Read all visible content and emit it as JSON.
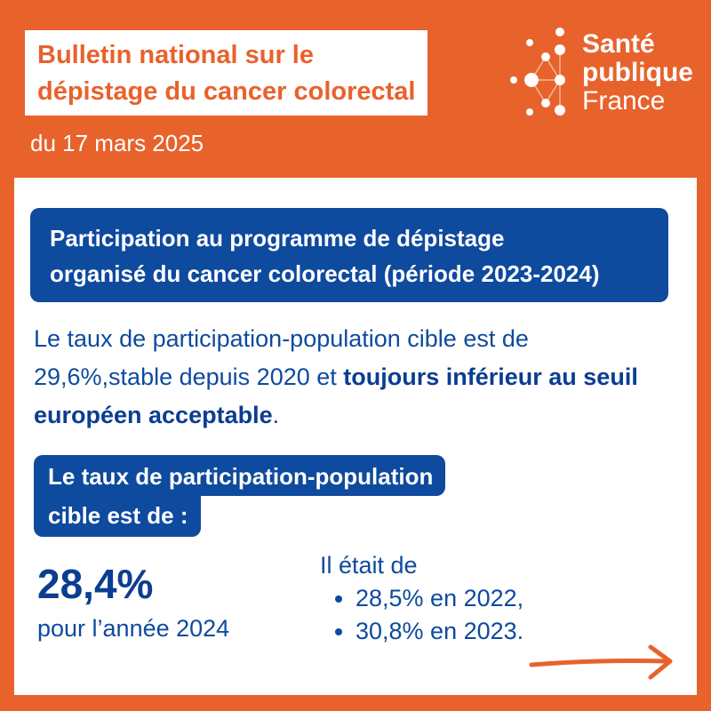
{
  "header": {
    "title_line1": "Bulletin national sur le",
    "title_line2": "dépistage du cancer colorectal",
    "date": "du 17 mars 2025"
  },
  "logo": {
    "line1": "Santé",
    "line2": "publique",
    "line3": "France"
  },
  "banner": {
    "line1": "Participation au programme de dépistage",
    "line2": "organisé du cancer colorectal (période 2023-2024)"
  },
  "paragraph": {
    "part1": "Le taux de participation-population cible est de 29,6%,stable depuis 2020 et ",
    "bold": "toujours inférieur au seuil européen acceptable",
    "end": "."
  },
  "label": {
    "line1": "Le taux de participation-population",
    "line2": "cible est de :"
  },
  "stat": {
    "value": "28,4%",
    "caption": "pour l’année 2024"
  },
  "previous": {
    "intro": "Il était de",
    "items": [
      "28,5% en 2022,",
      "30,8% en 2023."
    ]
  },
  "colors": {
    "orange": "#E8622C",
    "blue": "#0E4A9E"
  }
}
